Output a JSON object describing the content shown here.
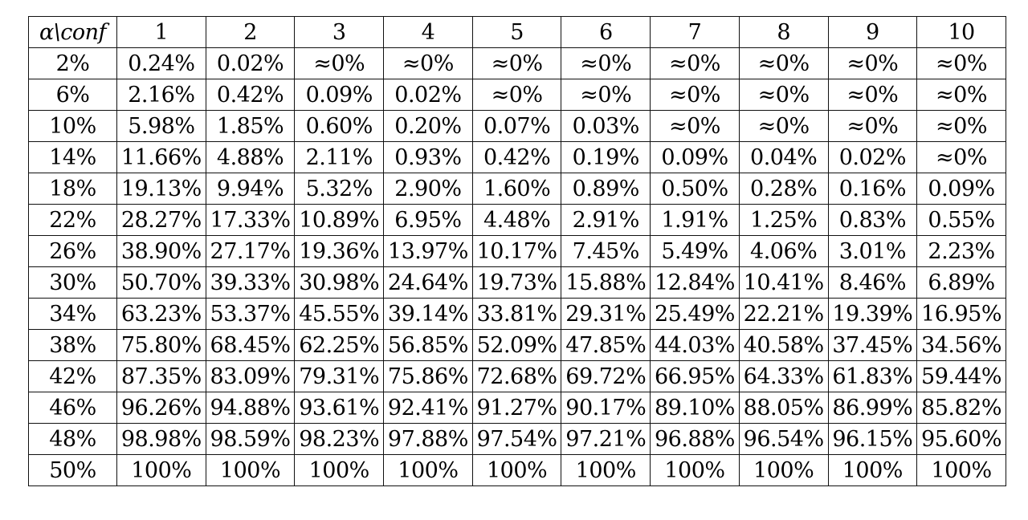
{
  "table": {
    "corner_label": "α\\conf",
    "columns": [
      "1",
      "2",
      "3",
      "4",
      "5",
      "6",
      "7",
      "8",
      "9",
      "10"
    ],
    "rows": [
      {
        "alpha": "2%",
        "cells": [
          "0.24%",
          "0.02%",
          "≈0%",
          "≈0%",
          "≈0%",
          "≈0%",
          "≈0%",
          "≈0%",
          "≈0%",
          "≈0%"
        ]
      },
      {
        "alpha": "6%",
        "cells": [
          "2.16%",
          "0.42%",
          "0.09%",
          "0.02%",
          "≈0%",
          "≈0%",
          "≈0%",
          "≈0%",
          "≈0%",
          "≈0%"
        ]
      },
      {
        "alpha": "10%",
        "cells": [
          "5.98%",
          "1.85%",
          "0.60%",
          "0.20%",
          "0.07%",
          "0.03%",
          "≈0%",
          "≈0%",
          "≈0%",
          "≈0%"
        ]
      },
      {
        "alpha": "14%",
        "cells": [
          "11.66%",
          "4.88%",
          "2.11%",
          "0.93%",
          "0.42%",
          "0.19%",
          "0.09%",
          "0.04%",
          "0.02%",
          "≈0%"
        ]
      },
      {
        "alpha": "18%",
        "cells": [
          "19.13%",
          "9.94%",
          "5.32%",
          "2.90%",
          "1.60%",
          "0.89%",
          "0.50%",
          "0.28%",
          "0.16%",
          "0.09%"
        ]
      },
      {
        "alpha": "22%",
        "cells": [
          "28.27%",
          "17.33%",
          "10.89%",
          "6.95%",
          "4.48%",
          "2.91%",
          "1.91%",
          "1.25%",
          "0.83%",
          "0.55%"
        ]
      },
      {
        "alpha": "26%",
        "cells": [
          "38.90%",
          "27.17%",
          "19.36%",
          "13.97%",
          "10.17%",
          "7.45%",
          "5.49%",
          "4.06%",
          "3.01%",
          "2.23%"
        ]
      },
      {
        "alpha": "30%",
        "cells": [
          "50.70%",
          "39.33%",
          "30.98%",
          "24.64%",
          "19.73%",
          "15.88%",
          "12.84%",
          "10.41%",
          "8.46%",
          "6.89%"
        ]
      },
      {
        "alpha": "34%",
        "cells": [
          "63.23%",
          "53.37%",
          "45.55%",
          "39.14%",
          "33.81%",
          "29.31%",
          "25.49%",
          "22.21%",
          "19.39%",
          "16.95%"
        ]
      },
      {
        "alpha": "38%",
        "cells": [
          "75.80%",
          "68.45%",
          "62.25%",
          "56.85%",
          "52.09%",
          "47.85%",
          "44.03%",
          "40.58%",
          "37.45%",
          "34.56%"
        ]
      },
      {
        "alpha": "42%",
        "cells": [
          "87.35%",
          "83.09%",
          "79.31%",
          "75.86%",
          "72.68%",
          "69.72%",
          "66.95%",
          "64.33%",
          "61.83%",
          "59.44%"
        ]
      },
      {
        "alpha": "46%",
        "cells": [
          "96.26%",
          "94.88%",
          "93.61%",
          "92.41%",
          "91.27%",
          "90.17%",
          "89.10%",
          "88.05%",
          "86.99%",
          "85.82%"
        ]
      },
      {
        "alpha": "48%",
        "cells": [
          "98.98%",
          "98.59%",
          "98.23%",
          "97.88%",
          "97.54%",
          "97.21%",
          "96.88%",
          "96.54%",
          "96.15%",
          "95.60%"
        ]
      },
      {
        "alpha": "50%",
        "cells": [
          "100%",
          "100%",
          "100%",
          "100%",
          "100%",
          "100%",
          "100%",
          "100%",
          "100%",
          "100%"
        ]
      }
    ]
  }
}
